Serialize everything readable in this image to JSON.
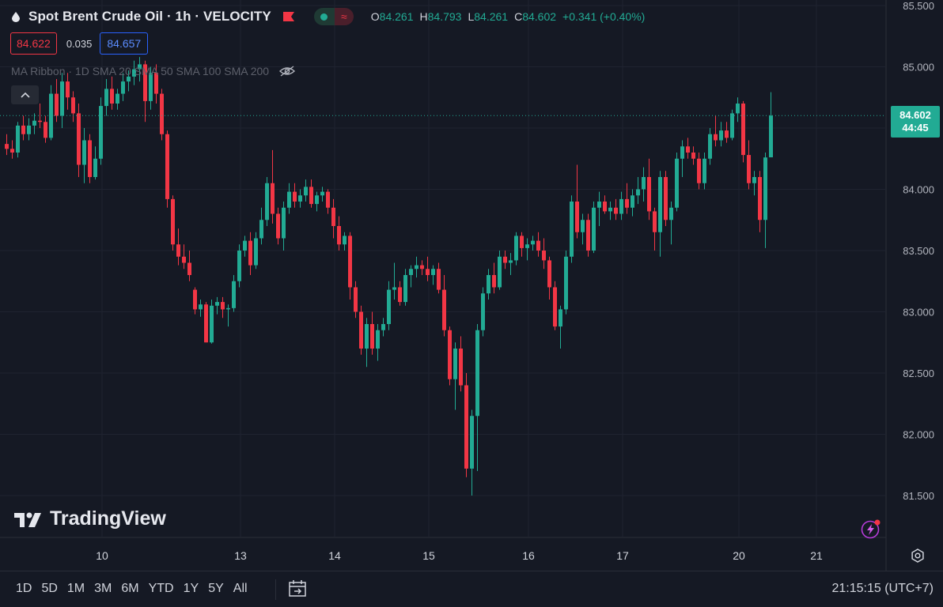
{
  "legend": {
    "symbol_title": "Spot Brent Crude Oil · 1h · VELOCITY",
    "open_key": "O",
    "open": "84.261",
    "high_key": "H",
    "high": "84.793",
    "low_key": "L",
    "low": "84.261",
    "close_key": "C",
    "close": "84.602",
    "change": "+0.341 (+0.40%)"
  },
  "quote": {
    "bid": "84.622",
    "spread": "0.035",
    "ask": "84.657"
  },
  "indicator": {
    "label": "MA Ribbon · 1D SMA 20 SMA 50 SMA 100 SMA 200"
  },
  "watermark": "TradingView",
  "last_price": {
    "price": "84.602",
    "countdown": "44:45"
  },
  "time_ranges": [
    "1D",
    "5D",
    "1M",
    "3M",
    "6M",
    "YTD",
    "1Y",
    "5Y",
    "All"
  ],
  "clock": "21:15:15 (UTC+7)",
  "colors": {
    "up": "#22ab94",
    "down": "#f23645",
    "background": "#151924",
    "grid": "#1f2330",
    "text": "#d1d4dc"
  },
  "icons": {
    "symbol": "oil-drop-icon",
    "flag": "flag-icon",
    "eye": "eye-hidden-icon",
    "collapse": "chevron-up-icon",
    "bolt": "lightning-icon",
    "settings": "gear-icon",
    "goto": "goto-date-icon"
  },
  "chart_data": {
    "type": "candlestick",
    "title": "Spot Brent Crude Oil · 1h · VELOCITY",
    "y_ticks": [
      "85.500",
      "85.000",
      "84.500",
      "84.000",
      "83.500",
      "83.000",
      "82.500",
      "82.000",
      "81.500"
    ],
    "y_tick_values": [
      85.5,
      85.0,
      84.5,
      84.0,
      83.5,
      83.0,
      82.5,
      82.0,
      81.5
    ],
    "ylim": [
      81.3,
      85.55
    ],
    "x_ticks": [
      "10",
      "13",
      "14",
      "15",
      "16",
      "17",
      "20",
      "21"
    ],
    "x_tick_index": [
      17,
      42,
      59,
      76,
      94,
      111,
      132,
      146
    ],
    "x_range": [
      0,
      149
    ],
    "last_price": 84.602,
    "last_index": 134,
    "candles": [
      [
        0,
        84.37,
        84.45,
        84.28,
        84.33
      ],
      [
        1,
        84.33,
        84.4,
        84.25,
        84.3
      ],
      [
        2,
        84.3,
        84.55,
        84.26,
        84.52
      ],
      [
        3,
        84.52,
        84.6,
        84.4,
        84.45
      ],
      [
        4,
        84.45,
        84.58,
        84.4,
        84.52
      ],
      [
        5,
        84.52,
        84.62,
        84.45,
        84.56
      ],
      [
        6,
        84.56,
        84.7,
        84.5,
        84.55
      ],
      [
        7,
        84.55,
        84.6,
        84.38,
        84.42
      ],
      [
        8,
        84.42,
        84.85,
        84.4,
        84.78
      ],
      [
        9,
        84.78,
        84.9,
        84.55,
        84.6
      ],
      [
        10,
        84.6,
        84.95,
        84.5,
        84.88
      ],
      [
        11,
        84.88,
        84.95,
        84.65,
        84.75
      ],
      [
        12,
        84.75,
        84.8,
        84.55,
        84.62
      ],
      [
        13,
        84.62,
        84.7,
        84.1,
        84.2
      ],
      [
        14,
        84.2,
        84.5,
        84.05,
        84.4
      ],
      [
        15,
        84.4,
        84.45,
        84.05,
        84.1
      ],
      [
        16,
        84.1,
        84.35,
        84.08,
        84.25
      ],
      [
        17,
        84.25,
        84.75,
        84.2,
        84.68
      ],
      [
        18,
        84.68,
        84.9,
        84.6,
        84.82
      ],
      [
        19,
        84.82,
        84.92,
        84.65,
        84.7
      ],
      [
        20,
        84.7,
        84.82,
        84.65,
        84.78
      ],
      [
        21,
        84.78,
        84.95,
        84.72,
        84.88
      ],
      [
        22,
        84.88,
        84.97,
        84.8,
        84.92
      ],
      [
        23,
        84.92,
        85.05,
        84.85,
        84.98
      ],
      [
        24,
        84.98,
        85.08,
        84.88,
        85.02
      ],
      [
        25,
        85.02,
        85.05,
        84.55,
        84.72
      ],
      [
        26,
        84.72,
        85.0,
        84.65,
        84.95
      ],
      [
        27,
        84.95,
        85.02,
        84.7,
        84.78
      ],
      [
        28,
        84.78,
        84.82,
        84.4,
        84.45
      ],
      [
        29,
        84.45,
        84.48,
        83.85,
        83.92
      ],
      [
        30,
        83.92,
        83.95,
        83.5,
        83.55
      ],
      [
        31,
        83.55,
        83.68,
        83.38,
        83.45
      ],
      [
        32,
        83.45,
        83.55,
        83.35,
        83.4
      ],
      [
        33,
        83.4,
        83.5,
        83.25,
        83.3
      ],
      [
        34,
        83.18,
        83.2,
        82.98,
        83.02
      ],
      [
        35,
        83.02,
        83.1,
        82.96,
        83.06
      ],
      [
        36,
        83.06,
        83.08,
        82.75,
        82.75
      ],
      [
        37,
        82.75,
        83.1,
        82.74,
        83.05
      ],
      [
        38,
        83.05,
        83.12,
        82.98,
        83.08
      ],
      [
        39,
        83.08,
        83.12,
        82.95,
        83.02
      ],
      [
        40,
        83.02,
        83.06,
        82.88,
        83.03
      ],
      [
        41,
        83.03,
        83.3,
        83.0,
        83.25
      ],
      [
        42,
        83.25,
        83.55,
        83.2,
        83.5
      ],
      [
        43,
        83.5,
        83.62,
        83.45,
        83.58
      ],
      [
        44,
        83.58,
        83.65,
        83.3,
        83.38
      ],
      [
        45,
        83.38,
        83.65,
        83.35,
        83.6
      ],
      [
        46,
        83.6,
        83.85,
        83.55,
        83.75
      ],
      [
        47,
        83.75,
        84.1,
        83.7,
        84.05
      ],
      [
        48,
        84.05,
        84.32,
        83.72,
        83.8
      ],
      [
        49,
        83.8,
        83.85,
        83.55,
        83.6
      ],
      [
        50,
        83.6,
        83.9,
        83.5,
        83.85
      ],
      [
        51,
        83.85,
        84.05,
        83.8,
        83.98
      ],
      [
        52,
        83.98,
        84.05,
        83.85,
        83.9
      ],
      [
        53,
        83.9,
        84.0,
        83.85,
        83.95
      ],
      [
        54,
        83.95,
        84.08,
        83.9,
        84.02
      ],
      [
        55,
        84.02,
        84.08,
        83.85,
        83.88
      ],
      [
        56,
        83.88,
        83.98,
        83.82,
        83.95
      ],
      [
        57,
        83.95,
        84.02,
        83.9,
        83.98
      ],
      [
        58,
        83.98,
        84.0,
        83.8,
        83.85
      ],
      [
        59,
        83.85,
        83.92,
        83.6,
        83.7
      ],
      [
        60,
        83.7,
        83.78,
        83.5,
        83.55
      ],
      [
        61,
        83.55,
        83.65,
        83.5,
        83.62
      ],
      [
        62,
        83.62,
        83.65,
        83.1,
        83.2
      ],
      [
        63,
        83.2,
        83.25,
        82.95,
        83.0
      ],
      [
        64,
        83.0,
        83.05,
        82.65,
        82.7
      ],
      [
        65,
        82.7,
        82.95,
        82.55,
        82.9
      ],
      [
        66,
        82.9,
        83.0,
        82.65,
        82.7
      ],
      [
        67,
        82.7,
        82.9,
        82.6,
        82.85
      ],
      [
        68,
        82.85,
        82.95,
        82.8,
        82.9
      ],
      [
        69,
        82.9,
        83.25,
        82.85,
        83.18
      ],
      [
        70,
        83.18,
        83.4,
        83.1,
        83.2
      ],
      [
        71,
        83.2,
        83.25,
        83.05,
        83.08
      ],
      [
        72,
        83.08,
        83.35,
        83.05,
        83.3
      ],
      [
        73,
        83.3,
        83.38,
        83.2,
        83.35
      ],
      [
        74,
        83.35,
        83.45,
        83.28,
        83.38
      ],
      [
        75,
        83.38,
        83.42,
        83.3,
        83.35
      ],
      [
        76,
        83.35,
        83.45,
        83.25,
        83.3
      ],
      [
        77,
        83.3,
        83.38,
        83.22,
        83.35
      ],
      [
        78,
        83.35,
        83.4,
        83.15,
        83.18
      ],
      [
        79,
        83.18,
        83.3,
        82.8,
        82.85
      ],
      [
        80,
        82.85,
        82.88,
        82.4,
        82.45
      ],
      [
        81,
        82.45,
        82.75,
        82.2,
        82.7
      ],
      [
        82,
        82.7,
        82.8,
        82.35,
        82.4
      ],
      [
        83,
        82.4,
        82.5,
        81.65,
        81.72
      ],
      [
        84,
        81.72,
        82.2,
        81.5,
        82.15
      ],
      [
        85,
        82.15,
        82.9,
        81.7,
        82.85
      ],
      [
        86,
        82.85,
        83.2,
        82.8,
        83.15
      ],
      [
        87,
        83.15,
        83.35,
        83.1,
        83.3
      ],
      [
        88,
        83.3,
        83.4,
        83.15,
        83.2
      ],
      [
        89,
        83.2,
        83.5,
        83.18,
        83.45
      ],
      [
        90,
        83.45,
        83.5,
        83.35,
        83.4
      ],
      [
        91,
        83.4,
        83.48,
        83.3,
        83.42
      ],
      [
        92,
        83.42,
        83.65,
        83.38,
        83.62
      ],
      [
        93,
        83.62,
        83.65,
        83.45,
        83.52
      ],
      [
        94,
        83.52,
        83.6,
        83.42,
        83.55
      ],
      [
        95,
        83.55,
        83.62,
        83.5,
        83.58
      ],
      [
        96,
        83.58,
        83.65,
        83.45,
        83.5
      ],
      [
        97,
        83.5,
        83.6,
        83.35,
        83.42
      ],
      [
        98,
        83.42,
        83.45,
        83.1,
        83.2
      ],
      [
        99,
        83.2,
        83.25,
        82.85,
        82.88
      ],
      [
        100,
        82.88,
        83.05,
        82.7,
        83.02
      ],
      [
        101,
        83.02,
        83.5,
        82.98,
        83.45
      ],
      [
        102,
        83.45,
        83.95,
        83.4,
        83.9
      ],
      [
        103,
        83.9,
        84.2,
        83.6,
        83.65
      ],
      [
        104,
        83.65,
        83.8,
        83.55,
        83.75
      ],
      [
        105,
        83.75,
        83.8,
        83.45,
        83.5
      ],
      [
        106,
        83.5,
        83.9,
        83.48,
        83.85
      ],
      [
        107,
        83.85,
        83.98,
        83.7,
        83.9
      ],
      [
        108,
        83.9,
        83.95,
        83.8,
        83.82
      ],
      [
        109,
        83.82,
        83.9,
        83.75,
        83.85
      ],
      [
        110,
        83.85,
        83.92,
        83.75,
        83.8
      ],
      [
        111,
        83.8,
        83.98,
        83.75,
        83.92
      ],
      [
        112,
        83.92,
        84.05,
        83.8,
        83.85
      ],
      [
        113,
        83.85,
        84.0,
        83.78,
        83.95
      ],
      [
        114,
        83.95,
        84.1,
        83.88,
        84.0
      ],
      [
        115,
        84.0,
        84.18,
        83.9,
        84.1
      ],
      [
        116,
        84.1,
        84.25,
        83.75,
        83.82
      ],
      [
        117,
        83.82,
        83.85,
        83.5,
        83.65
      ],
      [
        118,
        83.65,
        84.15,
        83.45,
        84.1
      ],
      [
        119,
        84.1,
        84.15,
        83.7,
        83.75
      ],
      [
        120,
        83.75,
        83.9,
        83.55,
        83.85
      ],
      [
        121,
        83.85,
        84.3,
        83.82,
        84.25
      ],
      [
        122,
        84.25,
        84.4,
        84.1,
        84.35
      ],
      [
        123,
        84.35,
        84.42,
        84.25,
        84.3
      ],
      [
        124,
        84.3,
        84.35,
        84.2,
        84.25
      ],
      [
        125,
        84.25,
        84.3,
        84.0,
        84.05
      ],
      [
        126,
        84.05,
        84.3,
        84.0,
        84.25
      ],
      [
        127,
        84.25,
        84.5,
        84.2,
        84.45
      ],
      [
        128,
        84.45,
        84.6,
        84.35,
        84.4
      ],
      [
        129,
        84.4,
        84.55,
        84.35,
        84.48
      ],
      [
        130,
        84.48,
        84.55,
        84.38,
        84.42
      ],
      [
        131,
        84.42,
        84.65,
        84.4,
        84.62
      ],
      [
        132,
        84.62,
        84.75,
        84.55,
        84.7
      ],
      [
        133,
        84.7,
        84.72,
        84.22,
        84.28
      ],
      [
        134,
        84.28,
        84.4,
        84.0,
        84.05
      ],
      [
        135,
        84.05,
        84.15,
        83.95,
        84.1
      ],
      [
        136,
        84.1,
        84.15,
        83.65,
        83.75
      ],
      [
        137,
        83.75,
        84.3,
        83.52,
        84.26
      ],
      [
        138,
        84.261,
        84.793,
        84.261,
        84.602
      ]
    ]
  }
}
